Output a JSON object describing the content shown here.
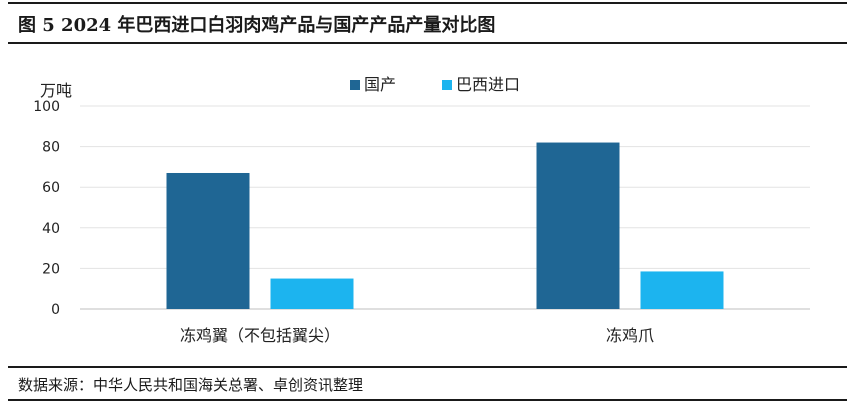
{
  "title": "图 5 2024 年巴西进口白羽肉鸡产品与国产产品产量对比图",
  "source": "数据来源：中华人民共和国海关总署、卓创资讯整理",
  "colors": {
    "domestic": "#1f6694",
    "brazil_import": "#1cb4ef"
  },
  "chart_data": {
    "type": "bar",
    "ylabel": "万吨",
    "xlabel": "",
    "ylim": [
      0,
      100
    ],
    "yticks": [
      0,
      20,
      40,
      60,
      80,
      100
    ],
    "grid": true,
    "legend_position": "top",
    "categories": [
      "冻鸡翼（不包括翼尖）",
      "冻鸡爪"
    ],
    "series": [
      {
        "name": "国产",
        "values": [
          67,
          82
        ]
      },
      {
        "name": "巴西进口",
        "values": [
          15,
          18.5
        ]
      }
    ]
  }
}
